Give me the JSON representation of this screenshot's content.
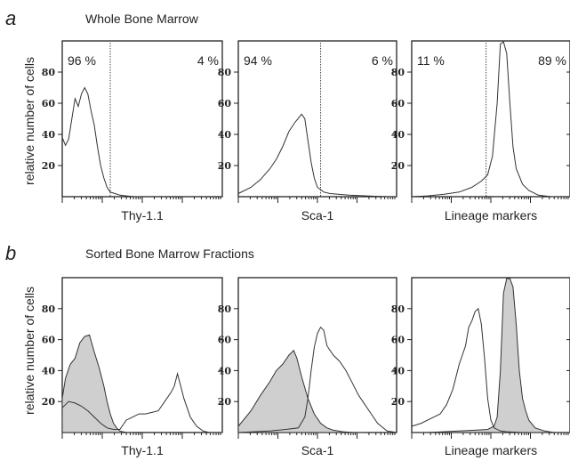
{
  "figure": {
    "rows": [
      {
        "letter": "a",
        "title": "Whole Bone Marrow"
      },
      {
        "letter": "b",
        "title": "Sorted Bone Marrow Fractions"
      }
    ],
    "ylabel": "relative number of cells"
  },
  "chart_data": [
    {
      "type": "area",
      "row": 0,
      "panel": 0,
      "xlabel": "Thy-1.1",
      "ylabel": "relative number of cells",
      "ylim": [
        0,
        100
      ],
      "yticks": [
        20,
        40,
        60,
        80
      ],
      "xlim": [
        0,
        1
      ],
      "gate": 0.3,
      "annotations": [
        "96 %",
        "4 %"
      ],
      "series": [
        {
          "filled": false,
          "x": [
            0.0,
            0.02,
            0.04,
            0.06,
            0.08,
            0.1,
            0.12,
            0.14,
            0.16,
            0.18,
            0.2,
            0.22,
            0.24,
            0.26,
            0.28,
            0.3,
            0.33,
            0.36,
            0.4,
            0.45,
            0.5
          ],
          "y": [
            38,
            33,
            37,
            50,
            63,
            58,
            66,
            70,
            66,
            55,
            46,
            32,
            20,
            12,
            6,
            3,
            2,
            1,
            0.5,
            0,
            0
          ]
        }
      ]
    },
    {
      "type": "area",
      "row": 0,
      "panel": 1,
      "xlabel": "Sca-1",
      "ylabel": "relative number of cells",
      "ylim": [
        0,
        100
      ],
      "yticks": [
        20,
        40,
        60,
        80
      ],
      "xlim": [
        0,
        1
      ],
      "gate": 0.52,
      "annotations": [
        "94 %",
        "6 %"
      ],
      "series": [
        {
          "filled": false,
          "x": [
            0.0,
            0.08,
            0.14,
            0.2,
            0.24,
            0.28,
            0.32,
            0.36,
            0.4,
            0.42,
            0.44,
            0.46,
            0.48,
            0.5,
            0.54,
            0.58,
            0.64,
            0.7,
            0.78,
            0.86,
            0.95,
            1.0
          ],
          "y": [
            2,
            6,
            11,
            18,
            24,
            32,
            42,
            48,
            53,
            50,
            36,
            22,
            12,
            6,
            3,
            2,
            1.5,
            1,
            0.6,
            0.3,
            0,
            0
          ]
        }
      ]
    },
    {
      "type": "area",
      "row": 0,
      "panel": 2,
      "xlabel": "Lineage markers",
      "ylabel": "relative number of cells",
      "ylim": [
        0,
        100
      ],
      "yticks": [
        20,
        40,
        60,
        80
      ],
      "xlim": [
        0,
        1
      ],
      "gate": 0.47,
      "annotations": [
        "11 %",
        "89 %"
      ],
      "series": [
        {
          "filled": false,
          "x": [
            0.0,
            0.1,
            0.2,
            0.3,
            0.38,
            0.44,
            0.48,
            0.51,
            0.54,
            0.56,
            0.58,
            0.6,
            0.62,
            0.64,
            0.66,
            0.7,
            0.74,
            0.8,
            0.88,
            1.0
          ],
          "y": [
            0,
            0.5,
            1.5,
            3,
            6,
            10,
            14,
            26,
            60,
            98,
            100,
            92,
            60,
            32,
            18,
            8,
            4,
            1,
            0,
            0
          ]
        }
      ]
    },
    {
      "type": "area",
      "row": 1,
      "panel": 0,
      "xlabel": "Thy-1.1",
      "ylabel": "relative number of cells",
      "ylim": [
        0,
        100
      ],
      "yticks": [
        20,
        40,
        60,
        80
      ],
      "xlim": [
        0,
        1
      ],
      "series": [
        {
          "filled": true,
          "x": [
            0.0,
            0.02,
            0.05,
            0.08,
            0.11,
            0.14,
            0.17,
            0.2,
            0.23,
            0.26,
            0.28,
            0.3,
            0.32,
            0.34,
            0.36,
            0.4,
            0.44
          ],
          "y": [
            22,
            35,
            44,
            48,
            58,
            62,
            63,
            52,
            42,
            30,
            20,
            12,
            6,
            3,
            1,
            0,
            0
          ]
        },
        {
          "filled": false,
          "x": [
            0.0,
            0.04,
            0.08,
            0.12,
            0.16,
            0.2,
            0.24,
            0.28,
            0.32,
            0.36,
            0.4,
            0.44,
            0.48,
            0.52,
            0.56,
            0.6,
            0.64,
            0.68,
            0.7,
            0.72,
            0.74,
            0.76,
            0.8,
            0.84,
            0.88,
            0.92,
            1.0
          ],
          "y": [
            16,
            20,
            19,
            17,
            14,
            10,
            6,
            3,
            2,
            2,
            8,
            10,
            12,
            12,
            13,
            14,
            20,
            26,
            30,
            38,
            30,
            22,
            10,
            4,
            1,
            0,
            0
          ]
        }
      ]
    },
    {
      "type": "area",
      "row": 1,
      "panel": 1,
      "xlabel": "Sca-1",
      "ylabel": "relative number of cells",
      "ylim": [
        0,
        100
      ],
      "yticks": [
        20,
        40,
        60,
        80
      ],
      "xlim": [
        0,
        1
      ],
      "series": [
        {
          "filled": true,
          "x": [
            0.0,
            0.08,
            0.14,
            0.2,
            0.24,
            0.28,
            0.32,
            0.35,
            0.37,
            0.4,
            0.44,
            0.48,
            0.52,
            0.56,
            0.6,
            0.66,
            0.72,
            0.8
          ],
          "y": [
            4,
            14,
            24,
            33,
            40,
            44,
            50,
            53,
            48,
            36,
            22,
            12,
            6,
            3,
            1.5,
            0.5,
            0,
            0
          ]
        },
        {
          "filled": false,
          "x": [
            0.0,
            0.1,
            0.2,
            0.3,
            0.38,
            0.42,
            0.44,
            0.46,
            0.48,
            0.5,
            0.52,
            0.54,
            0.56,
            0.6,
            0.64,
            0.68,
            0.72,
            0.76,
            0.8,
            0.84,
            0.88,
            0.94,
            1.0
          ],
          "y": [
            0,
            0.5,
            1,
            2,
            3,
            10,
            22,
            40,
            55,
            64,
            68,
            66,
            56,
            50,
            46,
            40,
            32,
            24,
            18,
            12,
            6,
            1,
            0
          ]
        }
      ]
    },
    {
      "type": "area",
      "row": 1,
      "panel": 2,
      "xlabel": "Lineage markers",
      "ylabel": "relative number of cells",
      "ylim": [
        0,
        100
      ],
      "yticks": [
        20,
        40,
        60,
        80
      ],
      "xlim": [
        0,
        1
      ],
      "series": [
        {
          "filled": true,
          "x": [
            0.0,
            0.1,
            0.2,
            0.3,
            0.4,
            0.48,
            0.52,
            0.54,
            0.56,
            0.58,
            0.6,
            0.62,
            0.64,
            0.66,
            0.68,
            0.7,
            0.72,
            0.74,
            0.78,
            0.84,
            0.9,
            1.0
          ],
          "y": [
            0,
            0,
            0.5,
            1,
            1.5,
            2,
            4,
            10,
            40,
            90,
            100,
            100,
            94,
            70,
            40,
            22,
            14,
            8,
            3,
            1,
            0,
            0
          ]
        },
        {
          "filled": false,
          "x": [
            0.0,
            0.06,
            0.12,
            0.18,
            0.22,
            0.26,
            0.3,
            0.34,
            0.36,
            0.38,
            0.4,
            0.42,
            0.44,
            0.46,
            0.48,
            0.5,
            0.52,
            0.56,
            0.6,
            0.7,
            0.8,
            1.0
          ],
          "y": [
            4,
            6,
            9,
            12,
            18,
            28,
            44,
            56,
            68,
            72,
            78,
            80,
            70,
            48,
            22,
            8,
            3,
            1,
            0.5,
            0,
            0,
            0
          ]
        }
      ]
    }
  ]
}
